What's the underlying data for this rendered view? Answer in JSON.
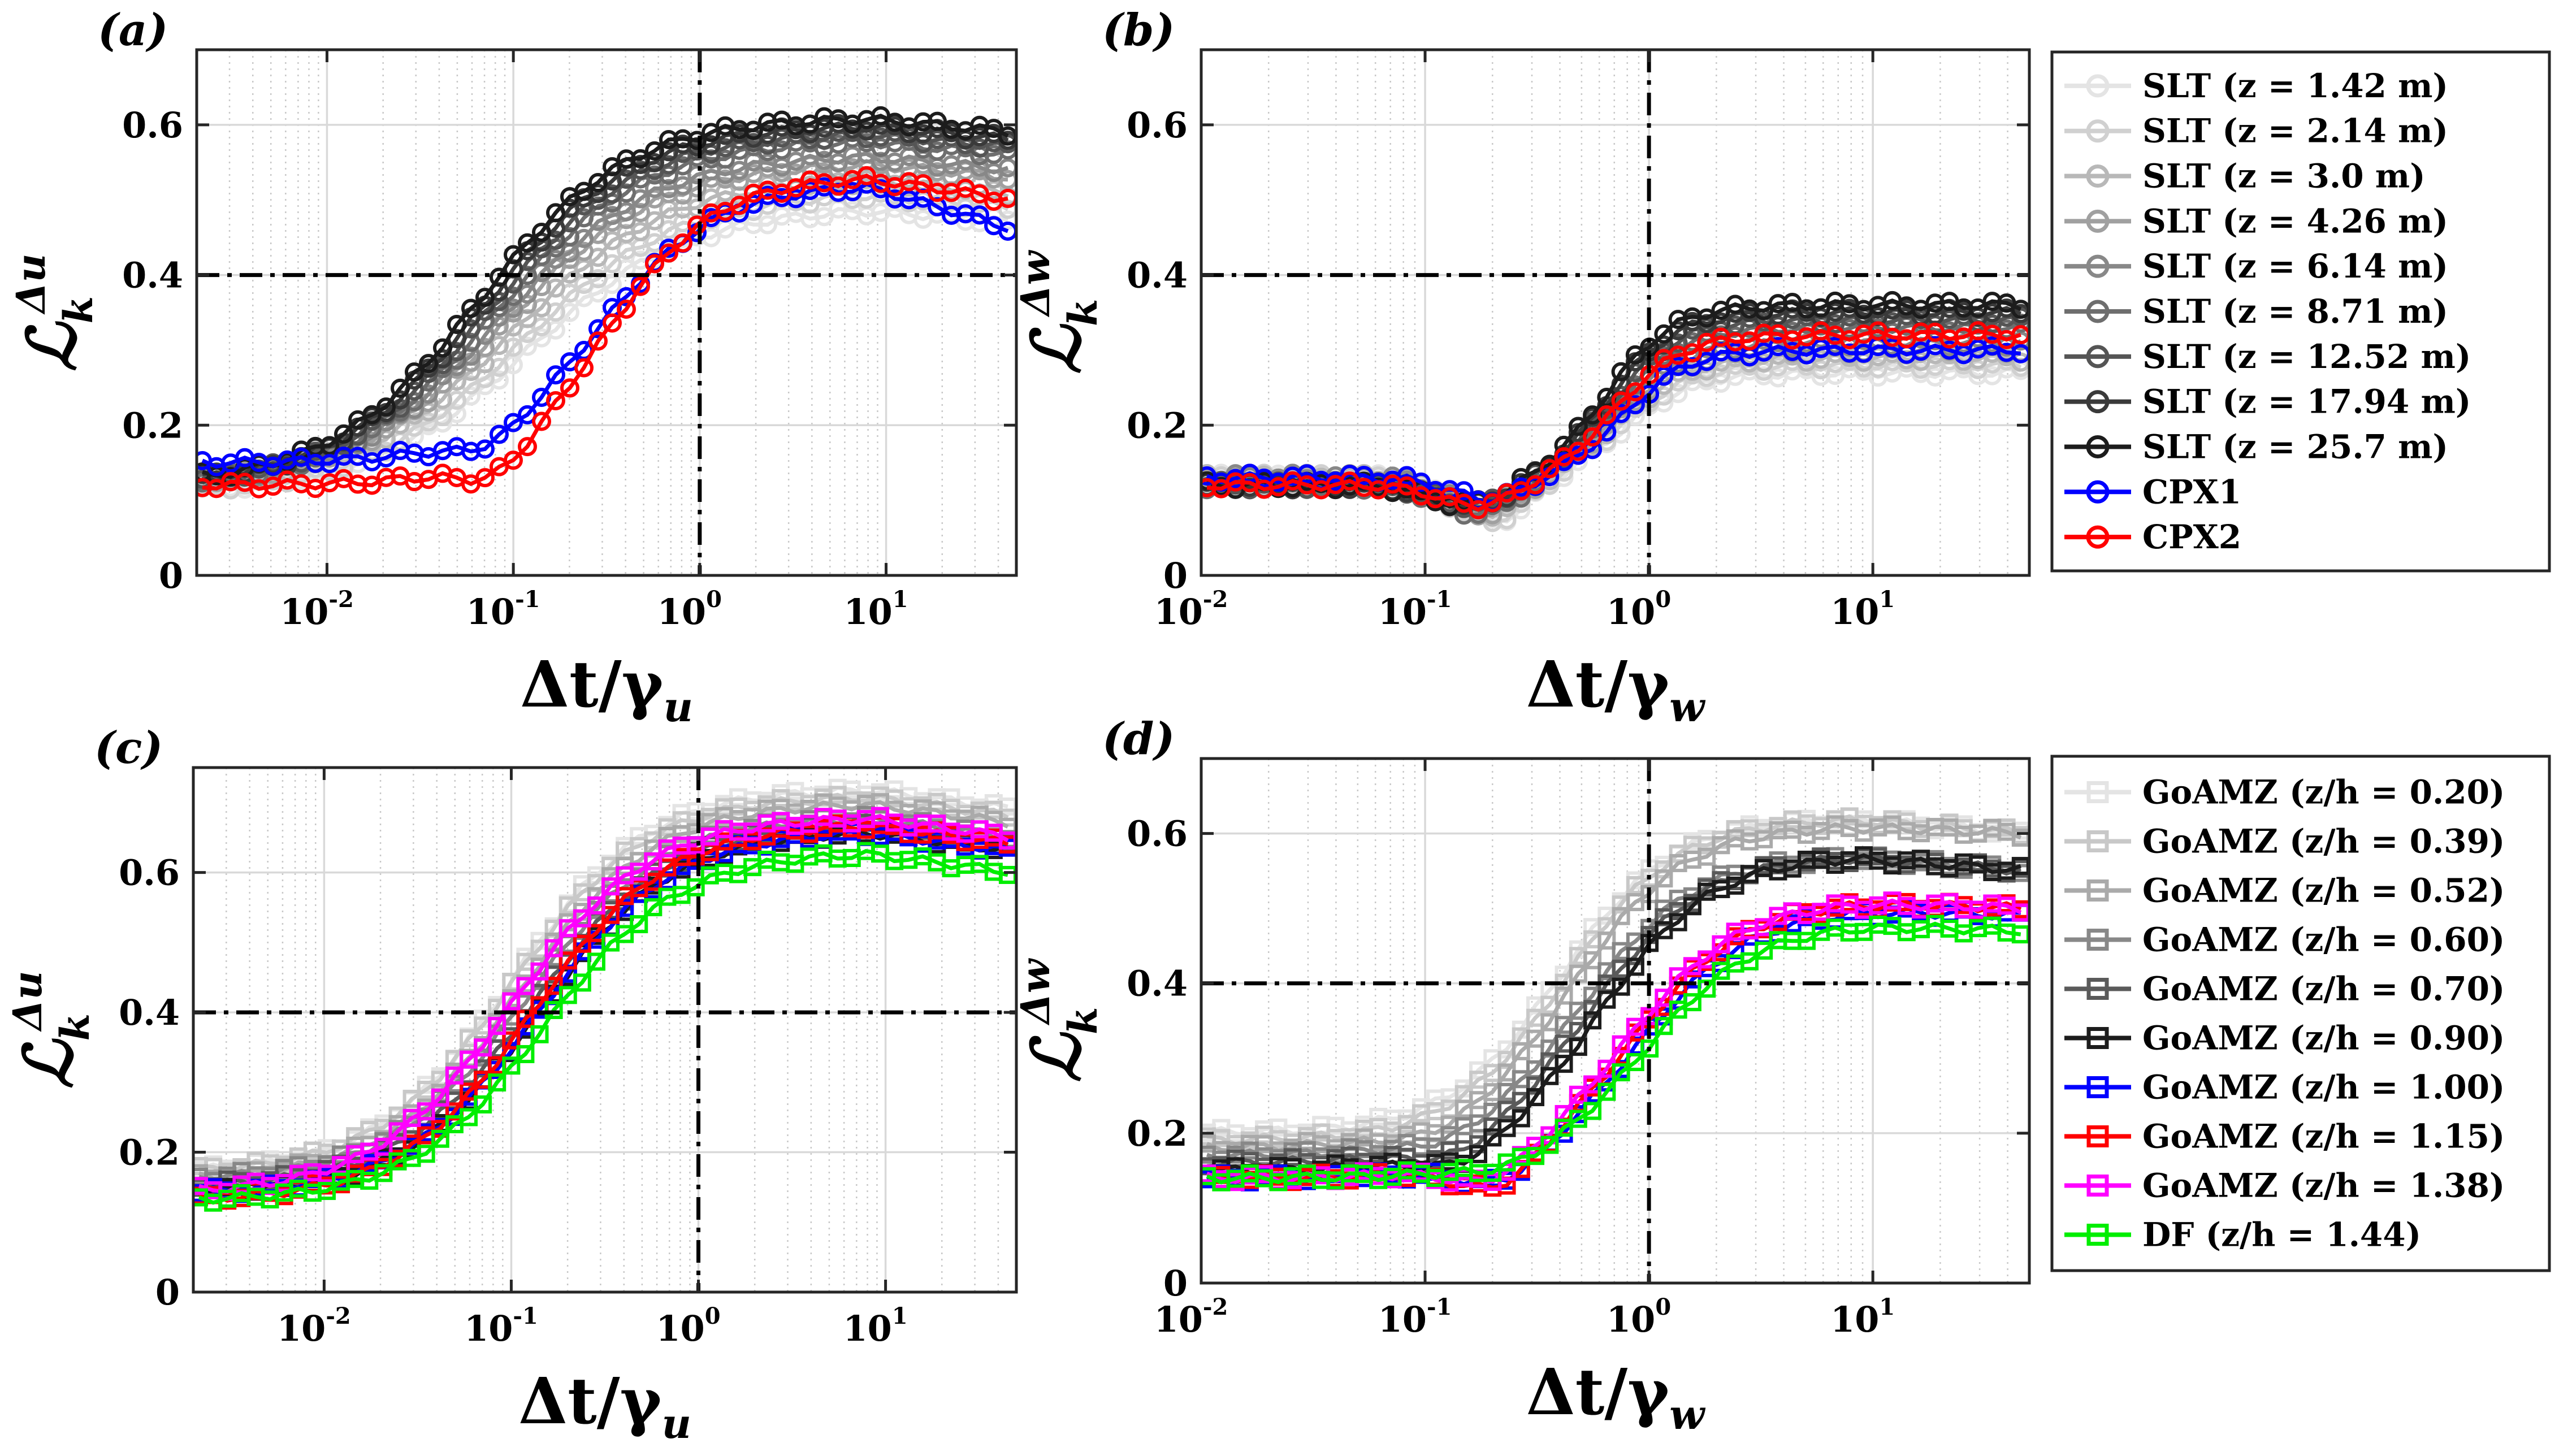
{
  "figure": {
    "panel_labels": [
      "(a)",
      "(b)",
      "(c)",
      "(d)"
    ]
  },
  "chart_data": [
    {
      "id": "a",
      "type": "line",
      "panel_label": "(a)",
      "xlabel": "Δt/γ_u",
      "ylabel": "L_k^Δu",
      "xscale": "log",
      "xlim": [
        0.002,
        50
      ],
      "ylim": [
        0,
        0.7
      ],
      "yticks": [
        0,
        0.2,
        0.4,
        0.6
      ],
      "ytick_labels": [
        "0",
        "0.2",
        "0.4",
        "0.6"
      ],
      "xticks": [
        0.01,
        0.1,
        1,
        10
      ],
      "xtick_labels": [
        "10^-2",
        "10^-1",
        "10^0",
        "10^1"
      ],
      "reference_lines": {
        "x": 1,
        "y": 0.4
      },
      "marker": "circle",
      "series": [
        {
          "name": "SLT (z = 1.42 m)",
          "color": "#e4e4e4",
          "lo": 0.11,
          "hi": 0.49,
          "tail": 0.47,
          "center": 0.12,
          "width": 0.85,
          "dip": 0.0
        },
        {
          "name": "SLT (z = 2.14 m)",
          "color": "#d0d0d0",
          "lo": 0.11,
          "hi": 0.51,
          "tail": 0.49,
          "center": 0.11,
          "width": 0.84,
          "dip": 0.0
        },
        {
          "name": "SLT (z = 3.0 m)",
          "color": "#b8b8b8",
          "lo": 0.12,
          "hi": 0.53,
          "tail": 0.51,
          "center": 0.1,
          "width": 0.83,
          "dip": 0.0
        },
        {
          "name": "SLT (z = 4.26 m)",
          "color": "#a0a0a0",
          "lo": 0.12,
          "hi": 0.55,
          "tail": 0.53,
          "center": 0.09,
          "width": 0.82,
          "dip": 0.0
        },
        {
          "name": "SLT (z = 6.14 m)",
          "color": "#888888",
          "lo": 0.12,
          "hi": 0.56,
          "tail": 0.54,
          "center": 0.085,
          "width": 0.81,
          "dip": 0.0
        },
        {
          "name": "SLT (z = 8.71 m)",
          "color": "#6e6e6e",
          "lo": 0.12,
          "hi": 0.58,
          "tail": 0.56,
          "center": 0.08,
          "width": 0.8,
          "dip": 0.0
        },
        {
          "name": "SLT (z = 12.52 m)",
          "color": "#555555",
          "lo": 0.12,
          "hi": 0.59,
          "tail": 0.57,
          "center": 0.075,
          "width": 0.8,
          "dip": 0.0
        },
        {
          "name": "SLT (z = 17.94 m)",
          "color": "#3a3a3a",
          "lo": 0.12,
          "hi": 0.6,
          "tail": 0.58,
          "center": 0.07,
          "width": 0.8,
          "dip": 0.0
        },
        {
          "name": "SLT (z = 25.7 m)",
          "color": "#1c1c1c",
          "lo": 0.12,
          "hi": 0.61,
          "tail": 0.59,
          "center": 0.065,
          "width": 0.8,
          "dip": 0.0
        },
        {
          "name": "CPX1",
          "color": "#0000ff",
          "lo": 0.15,
          "hi": 0.52,
          "tail": 0.46,
          "center": 0.3,
          "width": 0.62,
          "dip": 0.02
        },
        {
          "name": "CPX2",
          "color": "#ff0000",
          "lo": 0.12,
          "hi": 0.53,
          "tail": 0.5,
          "center": 0.32,
          "width": 0.58,
          "dip": 0.03
        }
      ]
    },
    {
      "id": "b",
      "type": "line",
      "panel_label": "(b)",
      "xlabel": "Δt/γ_w",
      "ylabel": "L_k^Δw",
      "xscale": "log",
      "xlim": [
        0.01,
        50
      ],
      "ylim": [
        0,
        0.7
      ],
      "yticks": [
        0,
        0.2,
        0.4,
        0.6
      ],
      "ytick_labels": [
        "0",
        "0.2",
        "0.4",
        "0.6"
      ],
      "xticks": [
        0.01,
        0.1,
        1,
        10
      ],
      "xtick_labels": [
        "10^-2",
        "10^-1",
        "10^0",
        "10^1"
      ],
      "reference_lines": {
        "x": 1,
        "y": 0.4
      },
      "marker": "circle",
      "series": [
        {
          "name": "SLT (z = 1.42 m)",
          "color": "#e4e4e4",
          "lo": 0.13,
          "hi": 0.27,
          "tail": 0.27,
          "center": 0.8,
          "width": 0.3,
          "dip": 0.06
        },
        {
          "name": "SLT (z = 2.14 m)",
          "color": "#d0d0d0",
          "lo": 0.13,
          "hi": 0.28,
          "tail": 0.28,
          "center": 0.78,
          "width": 0.3,
          "dip": 0.06
        },
        {
          "name": "SLT (z = 3.0 m)",
          "color": "#b8b8b8",
          "lo": 0.13,
          "hi": 0.29,
          "tail": 0.29,
          "center": 0.76,
          "width": 0.3,
          "dip": 0.05
        },
        {
          "name": "SLT (z = 4.26 m)",
          "color": "#a0a0a0",
          "lo": 0.13,
          "hi": 0.3,
          "tail": 0.3,
          "center": 0.74,
          "width": 0.3,
          "dip": 0.05
        },
        {
          "name": "SLT (z = 6.14 m)",
          "color": "#888888",
          "lo": 0.13,
          "hi": 0.31,
          "tail": 0.31,
          "center": 0.72,
          "width": 0.3,
          "dip": 0.04
        },
        {
          "name": "SLT (z = 8.71 m)",
          "color": "#6e6e6e",
          "lo": 0.12,
          "hi": 0.33,
          "tail": 0.33,
          "center": 0.7,
          "width": 0.3,
          "dip": 0.04
        },
        {
          "name": "SLT (z = 12.52 m)",
          "color": "#555555",
          "lo": 0.12,
          "hi": 0.34,
          "tail": 0.34,
          "center": 0.68,
          "width": 0.3,
          "dip": 0.03
        },
        {
          "name": "SLT (z = 17.94 m)",
          "color": "#3a3a3a",
          "lo": 0.12,
          "hi": 0.35,
          "tail": 0.35,
          "center": 0.66,
          "width": 0.3,
          "dip": 0.03
        },
        {
          "name": "SLT (z = 25.7 m)",
          "color": "#1c1c1c",
          "lo": 0.12,
          "hi": 0.36,
          "tail": 0.36,
          "center": 0.64,
          "width": 0.3,
          "dip": 0.03
        },
        {
          "name": "CPX1",
          "color": "#0000ff",
          "lo": 0.13,
          "hi": 0.3,
          "tail": 0.3,
          "center": 0.78,
          "width": 0.28,
          "dip": 0.03
        },
        {
          "name": "CPX2",
          "color": "#ff0000",
          "lo": 0.12,
          "hi": 0.32,
          "tail": 0.32,
          "center": 0.7,
          "width": 0.3,
          "dip": 0.03
        }
      ]
    },
    {
      "id": "c",
      "type": "line",
      "panel_label": "(c)",
      "xlabel": "Δt/γ_u",
      "ylabel": "L_k^Δu",
      "xscale": "log",
      "xlim": [
        0.002,
        50
      ],
      "ylim": [
        0,
        0.75
      ],
      "yticks": [
        0,
        0.2,
        0.4,
        0.6
      ],
      "ytick_labels": [
        "0",
        "0.2",
        "0.4",
        "0.6"
      ],
      "xticks": [
        0.01,
        0.1,
        1,
        10
      ],
      "xtick_labels": [
        "10^-2",
        "10^-1",
        "10^0",
        "10^1"
      ],
      "reference_lines": {
        "x": 1,
        "y": 0.4
      },
      "marker": "square",
      "series": [
        {
          "name": "GoAMZ (z/h = 0.20)",
          "color": "#e4e4e4",
          "lo": 0.17,
          "hi": 0.72,
          "tail": 0.69,
          "center": 0.1,
          "width": 0.72,
          "dip": 0.0
        },
        {
          "name": "GoAMZ (z/h = 0.39)",
          "color": "#c8c8c8",
          "lo": 0.17,
          "hi": 0.71,
          "tail": 0.68,
          "center": 0.1,
          "width": 0.72,
          "dip": 0.0
        },
        {
          "name": "GoAMZ (z/h = 0.52)",
          "color": "#aaaaaa",
          "lo": 0.16,
          "hi": 0.7,
          "tail": 0.67,
          "center": 0.11,
          "width": 0.72,
          "dip": 0.0
        },
        {
          "name": "GoAMZ (z/h = 0.60)",
          "color": "#888888",
          "lo": 0.16,
          "hi": 0.68,
          "tail": 0.65,
          "center": 0.12,
          "width": 0.72,
          "dip": 0.0
        },
        {
          "name": "GoAMZ (z/h = 0.70)",
          "color": "#5a5a5a",
          "lo": 0.15,
          "hi": 0.67,
          "tail": 0.64,
          "center": 0.13,
          "width": 0.72,
          "dip": 0.0
        },
        {
          "name": "GoAMZ (z/h = 0.90)",
          "color": "#1c1c1c",
          "lo": 0.14,
          "hi": 0.66,
          "tail": 0.63,
          "center": 0.14,
          "width": 0.72,
          "dip": 0.0
        },
        {
          "name": "GoAMZ (z/h = 1.00)",
          "color": "#0000ff",
          "lo": 0.14,
          "hi": 0.66,
          "tail": 0.63,
          "center": 0.14,
          "width": 0.72,
          "dip": 0.0
        },
        {
          "name": "GoAMZ (z/h = 1.15)",
          "color": "#ff0000",
          "lo": 0.13,
          "hi": 0.67,
          "tail": 0.64,
          "center": 0.13,
          "width": 0.72,
          "dip": 0.0
        },
        {
          "name": "GoAMZ (z/h = 1.38)",
          "color": "#ff00ff",
          "lo": 0.14,
          "hi": 0.68,
          "tail": 0.65,
          "center": 0.1,
          "width": 0.74,
          "dip": 0.0
        },
        {
          "name": "DF (z/h = 1.44)",
          "color": "#00ee00",
          "lo": 0.13,
          "hi": 0.63,
          "tail": 0.6,
          "center": 0.15,
          "width": 0.72,
          "dip": 0.0
        }
      ]
    },
    {
      "id": "d",
      "type": "line",
      "panel_label": "(d)",
      "xlabel": "Δt/γ_w",
      "ylabel": "L_k^Δw",
      "xscale": "log",
      "xlim": [
        0.01,
        50
      ],
      "ylim": [
        0,
        0.7
      ],
      "yticks": [
        0,
        0.2,
        0.4,
        0.6
      ],
      "ytick_labels": [
        "0",
        "0.2",
        "0.4",
        "0.6"
      ],
      "xticks": [
        0.01,
        0.1,
        1,
        10
      ],
      "xtick_labels": [
        "10^-2",
        "10^-1",
        "10^0",
        "10^1"
      ],
      "reference_lines": {
        "x": 1,
        "y": 0.4
      },
      "marker": "square",
      "series": [
        {
          "name": "GoAMZ (z/h = 0.20)",
          "color": "#e4e4e4",
          "lo": 0.2,
          "hi": 0.62,
          "tail": 0.6,
          "center": 0.4,
          "width": 0.5,
          "dip": 0.0
        },
        {
          "name": "GoAMZ (z/h = 0.39)",
          "color": "#c8c8c8",
          "lo": 0.19,
          "hi": 0.62,
          "tail": 0.6,
          "center": 0.42,
          "width": 0.5,
          "dip": 0.0
        },
        {
          "name": "GoAMZ (z/h = 0.52)",
          "color": "#aaaaaa",
          "lo": 0.18,
          "hi": 0.61,
          "tail": 0.6,
          "center": 0.45,
          "width": 0.5,
          "dip": 0.01
        },
        {
          "name": "GoAMZ (z/h = 0.60)",
          "color": "#888888",
          "lo": 0.17,
          "hi": 0.57,
          "tail": 0.55,
          "center": 0.5,
          "width": 0.5,
          "dip": 0.01
        },
        {
          "name": "GoAMZ (z/h = 0.70)",
          "color": "#5a5a5a",
          "lo": 0.16,
          "hi": 0.57,
          "tail": 0.55,
          "center": 0.55,
          "width": 0.5,
          "dip": 0.02
        },
        {
          "name": "GoAMZ (z/h = 0.90)",
          "color": "#1c1c1c",
          "lo": 0.15,
          "hi": 0.57,
          "tail": 0.55,
          "center": 0.6,
          "width": 0.5,
          "dip": 0.02
        },
        {
          "name": "GoAMZ (z/h = 1.00)",
          "color": "#0000ff",
          "lo": 0.14,
          "hi": 0.5,
          "tail": 0.49,
          "center": 0.9,
          "width": 0.5,
          "dip": 0.03
        },
        {
          "name": "GoAMZ (z/h = 1.15)",
          "color": "#ff0000",
          "lo": 0.14,
          "hi": 0.51,
          "tail": 0.5,
          "center": 0.85,
          "width": 0.5,
          "dip": 0.04
        },
        {
          "name": "GoAMZ (z/h = 1.38)",
          "color": "#ff00ff",
          "lo": 0.14,
          "hi": 0.51,
          "tail": 0.5,
          "center": 0.8,
          "width": 0.5,
          "dip": 0.03
        },
        {
          "name": "DF (z/h = 1.44)",
          "color": "#00ee00",
          "lo": 0.14,
          "hi": 0.48,
          "tail": 0.47,
          "center": 0.95,
          "width": 0.5,
          "dip": 0.01
        }
      ]
    }
  ],
  "legends": [
    {
      "id": "legend-top",
      "entries": [
        "SLT (z = 1.42 m)",
        "SLT (z = 2.14 m)",
        "SLT (z = 3.0 m)",
        "SLT (z = 4.26 m)",
        "SLT (z = 6.14 m)",
        "SLT (z = 8.71 m)",
        "SLT (z = 12.52 m)",
        "SLT (z = 17.94 m)",
        "SLT (z = 25.7 m)",
        "CPX1",
        "CPX2"
      ],
      "colors": [
        "#e4e4e4",
        "#d0d0d0",
        "#b8b8b8",
        "#a0a0a0",
        "#888888",
        "#6e6e6e",
        "#555555",
        "#3a3a3a",
        "#1c1c1c",
        "#0000ff",
        "#ff0000"
      ],
      "marker": "circle"
    },
    {
      "id": "legend-bottom",
      "entries": [
        "GoAMZ (z/h = 0.20)",
        "GoAMZ (z/h = 0.39)",
        "GoAMZ (z/h = 0.52)",
        "GoAMZ (z/h = 0.60)",
        "GoAMZ (z/h = 0.70)",
        "GoAMZ (z/h = 0.90)",
        "GoAMZ (z/h = 1.00)",
        "GoAMZ (z/h = 1.15)",
        "GoAMZ (z/h = 1.38)",
        "DF (z/h = 1.44)"
      ],
      "colors": [
        "#e4e4e4",
        "#c8c8c8",
        "#aaaaaa",
        "#888888",
        "#5a5a5a",
        "#1c1c1c",
        "#0000ff",
        "#ff0000",
        "#ff00ff",
        "#00ee00"
      ],
      "marker": "square"
    }
  ]
}
